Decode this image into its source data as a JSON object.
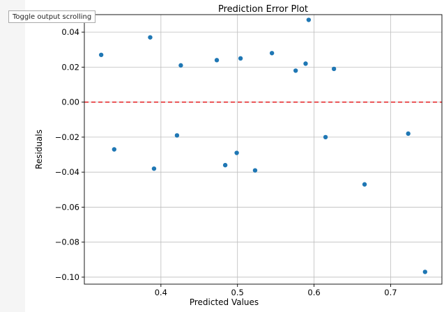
{
  "output": {
    "toggle_label": "Toggle output scrolling"
  },
  "colors": {
    "points": "#1f77b4",
    "reference_line": "#e31a1c",
    "grid": "#bdbdbd",
    "axis": "#000000",
    "gutter": "#f5f5f5"
  },
  "chart_data": {
    "type": "scatter",
    "title": "Prediction Error Plot",
    "xlabel": "Predicted Values",
    "ylabel": "Residuals",
    "xlim": [
      0.3,
      0.767
    ],
    "ylim": [
      -0.104,
      0.05
    ],
    "xticks": [
      0.4,
      0.5,
      0.6,
      0.7
    ],
    "xtick_labels": [
      "0.4",
      "0.5",
      "0.6",
      "0.7"
    ],
    "yticks": [
      0.04,
      0.02,
      0.0,
      -0.02,
      -0.04,
      -0.06,
      -0.08,
      -0.1
    ],
    "ytick_labels": [
      "0.04",
      "0.02",
      "0.00",
      "−0.02",
      "−0.04",
      "−0.06",
      "−0.08",
      "−0.10"
    ],
    "grid": true,
    "reference_line": {
      "y": 0.0,
      "style": "dashed"
    },
    "points": [
      {
        "x": 0.322,
        "y": 0.027
      },
      {
        "x": 0.339,
        "y": -0.027
      },
      {
        "x": 0.386,
        "y": 0.037
      },
      {
        "x": 0.391,
        "y": -0.038
      },
      {
        "x": 0.421,
        "y": -0.019
      },
      {
        "x": 0.426,
        "y": 0.021
      },
      {
        "x": 0.473,
        "y": 0.024
      },
      {
        "x": 0.484,
        "y": -0.036
      },
      {
        "x": 0.499,
        "y": -0.029
      },
      {
        "x": 0.504,
        "y": 0.025
      },
      {
        "x": 0.523,
        "y": -0.039
      },
      {
        "x": 0.545,
        "y": 0.028
      },
      {
        "x": 0.576,
        "y": 0.018
      },
      {
        "x": 0.589,
        "y": 0.022
      },
      {
        "x": 0.593,
        "y": 0.047
      },
      {
        "x": 0.615,
        "y": -0.02
      },
      {
        "x": 0.626,
        "y": 0.019
      },
      {
        "x": 0.666,
        "y": -0.047
      },
      {
        "x": 0.723,
        "y": -0.018
      },
      {
        "x": 0.745,
        "y": -0.097
      }
    ]
  }
}
